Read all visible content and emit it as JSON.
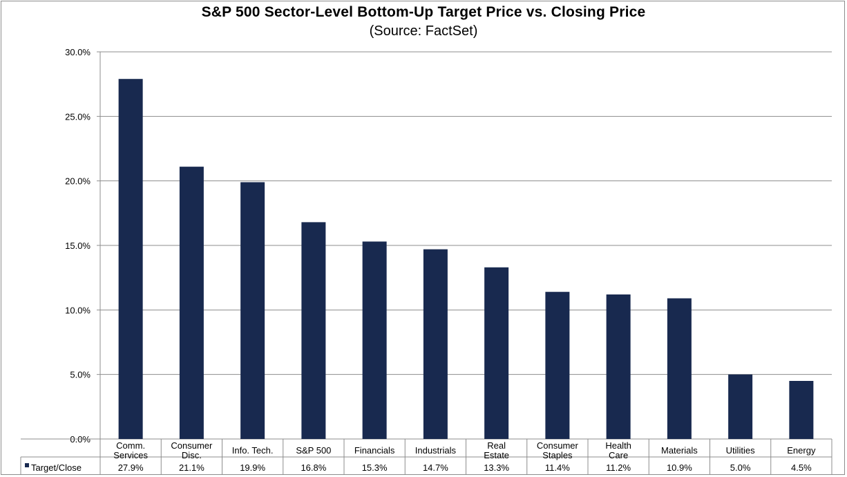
{
  "chart_data": {
    "type": "bar",
    "title": "S&P 500 Sector-Level Bottom-Up Target Price vs. Closing Price",
    "subtitle": "(Source: FactSet)",
    "categories": [
      [
        "Comm.",
        "Services"
      ],
      [
        "Consumer",
        "Disc."
      ],
      [
        "Info. Tech."
      ],
      [
        "S&P 500"
      ],
      [
        "Financials"
      ],
      [
        "Industrials"
      ],
      [
        "Real",
        "Estate"
      ],
      [
        "Consumer",
        "Staples"
      ],
      [
        "Health",
        "Care"
      ],
      [
        "Materials"
      ],
      [
        "Utilities"
      ],
      [
        "Energy"
      ]
    ],
    "series": [
      {
        "name": "Target/Close",
        "values": [
          27.9,
          21.1,
          19.9,
          16.8,
          15.3,
          14.7,
          13.3,
          11.4,
          11.2,
          10.9,
          5.0,
          4.5
        ],
        "labels": [
          "27.9%",
          "21.1%",
          "19.9%",
          "16.8%",
          "15.3%",
          "14.7%",
          "13.3%",
          "11.4%",
          "11.2%",
          "10.9%",
          "5.0%",
          "4.5%"
        ]
      }
    ],
    "yticks": [
      "0.0%",
      "5.0%",
      "10.0%",
      "15.0%",
      "20.0%",
      "25.0%",
      "30.0%"
    ],
    "ylim": [
      0,
      30
    ],
    "grid": true,
    "legend": "data-table-row",
    "colors": {
      "bar": "#18294f",
      "grid": "#8c8c8c"
    }
  }
}
